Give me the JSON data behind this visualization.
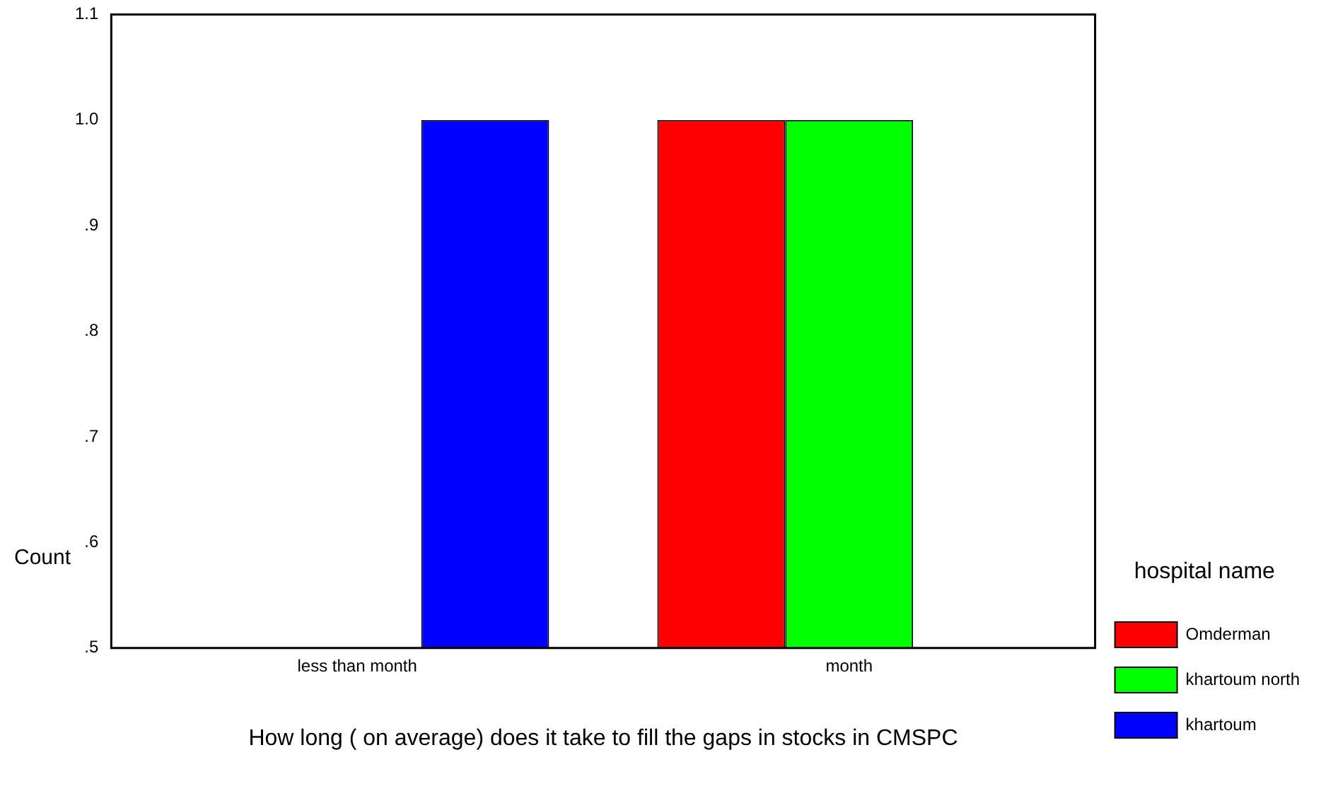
{
  "chart_data": {
    "type": "bar",
    "xlabel": "How long ( on average) does it take to fill the gaps in stocks in CMSPC",
    "ylabel": "Count",
    "legend_title": "hospital name",
    "categories": [
      "less than month",
      "month"
    ],
    "series": [
      {
        "name": "Omderman",
        "color": "#ff0000",
        "values": [
          null,
          1.0
        ]
      },
      {
        "name": "khartoum north",
        "color": "#00ff00",
        "values": [
          null,
          1.0
        ]
      },
      {
        "name": "khartoum",
        "color": "#0000ff",
        "values": [
          1.0,
          null
        ]
      }
    ],
    "ylim": [
      0.5,
      1.1
    ],
    "yticks": [
      {
        "value": 0.5,
        "label": ".5"
      },
      {
        "value": 0.6,
        "label": ".6"
      },
      {
        "value": 0.7,
        "label": ".7"
      },
      {
        "value": 0.8,
        "label": ".8"
      },
      {
        "value": 0.9,
        "label": ".9"
      },
      {
        "value": 1.0,
        "label": "1.0"
      },
      {
        "value": 1.1,
        "label": "1.1"
      }
    ],
    "grid": false,
    "legend": "right"
  }
}
